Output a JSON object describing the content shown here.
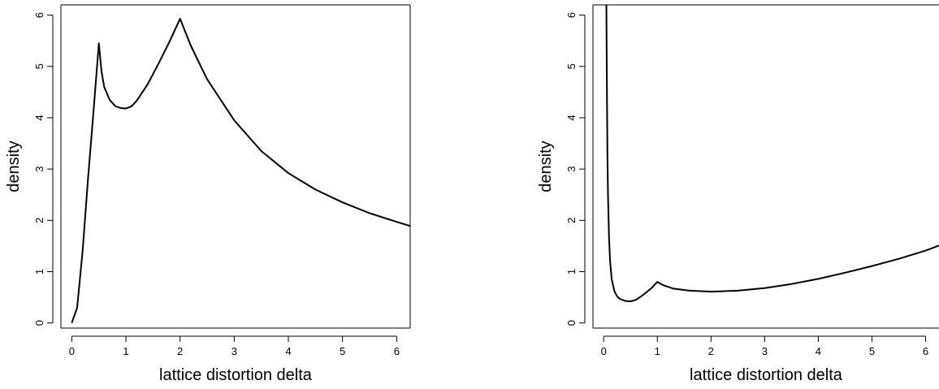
{
  "chart_data": [
    {
      "type": "line",
      "xlabel": "lattice distortion delta",
      "ylabel": "density",
      "xlim": [
        -0.2,
        6.25
      ],
      "ylim": [
        -0.1,
        6.2
      ],
      "xticks": [
        0,
        1,
        2,
        3,
        4,
        5,
        6
      ],
      "yticks": [
        0,
        1,
        2,
        3,
        4,
        5,
        6
      ],
      "grid": false,
      "series": [
        {
          "x": [
            0,
            0.1,
            0.2,
            0.3,
            0.4,
            0.5,
            0.55,
            0.6,
            0.7,
            0.8,
            0.9,
            1.0,
            1.1,
            1.2,
            1.4,
            1.6,
            1.8,
            2.0,
            2.2,
            2.5,
            3.0,
            3.5,
            4.0,
            4.5,
            5.0,
            5.5,
            6.0,
            6.25
          ],
          "y": [
            0,
            0.3,
            1.4,
            2.8,
            4.1,
            5.45,
            4.9,
            4.6,
            4.35,
            4.23,
            4.19,
            4.18,
            4.22,
            4.33,
            4.65,
            5.05,
            5.47,
            5.93,
            5.4,
            4.75,
            3.95,
            3.35,
            2.92,
            2.6,
            2.35,
            2.14,
            1.97,
            1.89
          ]
        }
      ]
    },
    {
      "type": "line",
      "xlabel": "lattice distortion delta",
      "ylabel": "density",
      "xlim": [
        -0.2,
        6.25
      ],
      "ylim": [
        -0.1,
        6.2
      ],
      "xticks": [
        0,
        1,
        2,
        3,
        4,
        5,
        6
      ],
      "yticks": [
        0,
        1,
        2,
        3,
        4,
        5,
        6
      ],
      "grid": false,
      "series": [
        {
          "x": [
            0.05,
            0.06,
            0.07,
            0.08,
            0.1,
            0.12,
            0.15,
            0.2,
            0.25,
            0.3,
            0.4,
            0.5,
            0.6,
            0.7,
            0.8,
            0.9,
            1.0,
            1.1,
            1.3,
            1.6,
            2.0,
            2.5,
            3.0,
            3.5,
            4.0,
            4.5,
            5.0,
            5.5,
            6.0,
            6.25
          ],
          "y": [
            6.2,
            4.5,
            3.3,
            2.5,
            1.65,
            1.2,
            0.85,
            0.62,
            0.52,
            0.47,
            0.43,
            0.42,
            0.45,
            0.52,
            0.6,
            0.69,
            0.8,
            0.74,
            0.67,
            0.63,
            0.61,
            0.63,
            0.68,
            0.76,
            0.86,
            0.98,
            1.11,
            1.25,
            1.41,
            1.51
          ]
        }
      ]
    }
  ]
}
